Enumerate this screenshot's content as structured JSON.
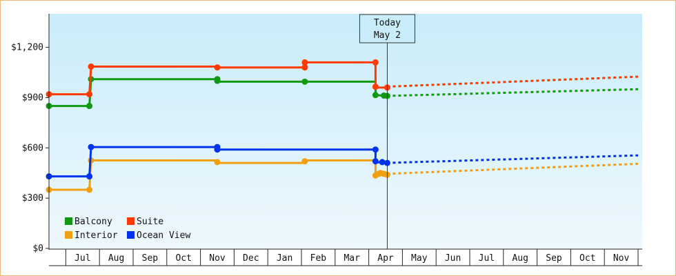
{
  "chart_data": {
    "type": "line",
    "title": "",
    "xlabel": "",
    "ylabel": "",
    "ylim": [
      0,
      1400
    ],
    "y_ticks": [
      0,
      300,
      600,
      900,
      1200
    ],
    "y_tick_labels": [
      "$0",
      "$300",
      "$600",
      "$900",
      "$1,200"
    ],
    "x_tick_labels": [
      "Jul",
      "Aug",
      "Sep",
      "Oct",
      "Nov",
      "Dec",
      "Jan",
      "Feb",
      "Mar",
      "Apr",
      "May",
      "Jun",
      "Jul",
      "Aug",
      "Sep",
      "Oct",
      "Nov"
    ],
    "x_unit": "months since start of June (past), forecast after Today",
    "today": {
      "label_line1": "Today",
      "label_line2": "May 2",
      "x": 10.05
    },
    "legend": {
      "placement": "bottom-left"
    },
    "series": [
      {
        "name": "Balcony",
        "color": "#119911",
        "history": [
          [
            0,
            850
          ],
          [
            1.2,
            850
          ],
          [
            1.25,
            1010
          ],
          [
            5.0,
            1010
          ],
          [
            5.0,
            995
          ],
          [
            7.6,
            995
          ],
          [
            9.7,
            995
          ],
          [
            9.7,
            915
          ],
          [
            10.05,
            910
          ]
        ],
        "markers": [
          [
            0,
            850
          ],
          [
            1.2,
            850
          ],
          [
            1.25,
            1010
          ],
          [
            5.0,
            1010
          ],
          [
            5.0,
            1000
          ],
          [
            7.6,
            995
          ],
          [
            9.7,
            915
          ],
          [
            9.95,
            912
          ],
          [
            10.05,
            910
          ]
        ],
        "forecast": [
          [
            10.05,
            910
          ],
          [
            17.5,
            950
          ]
        ]
      },
      {
        "name": "Suite",
        "color": "#ff3a00",
        "history": [
          [
            0,
            920
          ],
          [
            1.2,
            920
          ],
          [
            1.25,
            1085
          ],
          [
            5.0,
            1085
          ],
          [
            5.0,
            1080
          ],
          [
            7.6,
            1080
          ],
          [
            7.6,
            1110
          ],
          [
            9.7,
            1110
          ],
          [
            9.7,
            960
          ],
          [
            10.05,
            960
          ]
        ],
        "markers": [
          [
            0,
            920
          ],
          [
            1.2,
            920
          ],
          [
            1.25,
            1085
          ],
          [
            5.0,
            1080
          ],
          [
            7.6,
            1080
          ],
          [
            7.6,
            1110
          ],
          [
            9.7,
            1110
          ],
          [
            9.7,
            965
          ],
          [
            10.05,
            960
          ]
        ],
        "forecast": [
          [
            10.05,
            965
          ],
          [
            17.5,
            1025
          ]
        ]
      },
      {
        "name": "Interior",
        "color": "#f0a010",
        "history": [
          [
            0,
            350
          ],
          [
            1.2,
            350
          ],
          [
            1.25,
            525
          ],
          [
            5.0,
            525
          ],
          [
            5.0,
            510
          ],
          [
            7.6,
            510
          ],
          [
            7.6,
            525
          ],
          [
            9.7,
            525
          ],
          [
            9.7,
            430
          ],
          [
            9.85,
            440
          ],
          [
            10.05,
            440
          ]
        ],
        "markers": [
          [
            0,
            350
          ],
          [
            1.2,
            350
          ],
          [
            1.25,
            525
          ],
          [
            5.0,
            515
          ],
          [
            7.6,
            520
          ],
          [
            9.7,
            435
          ],
          [
            9.8,
            445
          ],
          [
            9.85,
            450
          ],
          [
            9.95,
            445
          ],
          [
            10.05,
            440
          ]
        ],
        "forecast": [
          [
            10.05,
            445
          ],
          [
            17.5,
            505
          ]
        ]
      },
      {
        "name": "Ocean View",
        "color": "#0033ee",
        "history": [
          [
            0,
            430
          ],
          [
            1.2,
            430
          ],
          [
            1.25,
            605
          ],
          [
            5.0,
            605
          ],
          [
            5.0,
            590
          ],
          [
            9.7,
            590
          ],
          [
            9.7,
            515
          ],
          [
            10.05,
            510
          ]
        ],
        "markers": [
          [
            0,
            430
          ],
          [
            1.2,
            430
          ],
          [
            1.25,
            605
          ],
          [
            5.0,
            605
          ],
          [
            5.0,
            590
          ],
          [
            9.7,
            590
          ],
          [
            9.7,
            520
          ],
          [
            9.9,
            515
          ],
          [
            10.05,
            510
          ]
        ],
        "forecast": [
          [
            10.05,
            510
          ],
          [
            17.5,
            555
          ]
        ]
      }
    ]
  }
}
